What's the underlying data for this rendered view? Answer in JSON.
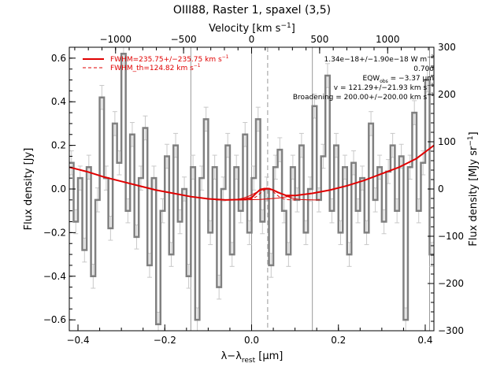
{
  "chart_data": {
    "type": "line",
    "title": "OIII88, Raster 1, spaxel (3,5)",
    "xlabel": "λ−λ",
    "xlabel_sub": "rest",
    "xlabel_unit": " [μm]",
    "ylabel": "Flux density [Jy]",
    "top_axis_label": "Velocity [km s",
    "top_axis_sup": "−1",
    "top_axis_close": "]",
    "right_axis_label": "Flux density [MJy sr",
    "right_axis_sup": "−1",
    "right_axis_close": "]",
    "xlim": [
      -0.42,
      0.42
    ],
    "ylim": [
      -0.65,
      0.65
    ],
    "top_xlim": [
      -1340,
      1340
    ],
    "right_ylim": [
      -300,
      300
    ],
    "x_ticks": [
      -0.4,
      -0.2,
      0.0,
      0.2,
      0.4
    ],
    "x_tick_labels": [
      "−0.4",
      "−0.2",
      "0.0",
      "0.2",
      "0.4"
    ],
    "y_ticks": [
      -0.6,
      -0.4,
      -0.2,
      0.0,
      0.2,
      0.4,
      0.6
    ],
    "y_tick_labels": [
      "−0.6",
      "−0.4",
      "−0.2",
      "0.0",
      "0.2",
      "0.4",
      "0.6"
    ],
    "top_ticks": [
      -1000,
      -500,
      0,
      500,
      1000
    ],
    "top_tick_labels": [
      "−1000",
      "−500",
      "0",
      "500",
      "1000"
    ],
    "right_ticks": [
      -300,
      -200,
      -100,
      0,
      100,
      200,
      300
    ],
    "right_tick_labels": [
      "−300",
      "−200",
      "−100",
      "0",
      "100",
      "200",
      "300"
    ],
    "vlines_solid": [
      -0.14,
      0.0,
      0.14,
      0.41
    ],
    "vline_dashed": 0.037,
    "legend": {
      "placement": "top-left",
      "entries": [
        {
          "label": "FWHM=235.75+/−235.75 km s",
          "sup": "−1",
          "style": "solid"
        },
        {
          "label": "FWHM_th=124.82 km s",
          "sup": "−1",
          "style": "dashed"
        }
      ]
    },
    "annotations": [
      "1.34e−18+/−1.90e−18 W m",
      "0.70σ",
      "EQW",
      " = −3.37 μm",
      "v = 121.29+/−21.93 km s",
      "Broadening = 200.00+/−200.00 km s"
    ],
    "annotation_sups": [
      "−2",
      "obs",
      "−1",
      "−1"
    ],
    "spectrum": {
      "color": "#808080",
      "x": [
        -0.415,
        -0.405,
        -0.395,
        -0.385,
        -0.375,
        -0.365,
        -0.355,
        -0.345,
        -0.335,
        -0.325,
        -0.315,
        -0.305,
        -0.295,
        -0.285,
        -0.275,
        -0.265,
        -0.255,
        -0.245,
        -0.235,
        -0.225,
        -0.215,
        -0.205,
        -0.195,
        -0.185,
        -0.175,
        -0.165,
        -0.155,
        -0.145,
        -0.135,
        -0.125,
        -0.115,
        -0.105,
        -0.095,
        -0.085,
        -0.075,
        -0.065,
        -0.055,
        -0.045,
        -0.035,
        -0.025,
        -0.015,
        -0.005,
        0.005,
        0.015,
        0.025,
        0.035,
        0.045,
        0.055,
        0.065,
        0.075,
        0.085,
        0.095,
        0.105,
        0.115,
        0.125,
        0.135,
        0.145,
        0.155,
        0.165,
        0.175,
        0.185,
        0.195,
        0.205,
        0.215,
        0.225,
        0.235,
        0.245,
        0.255,
        0.265,
        0.275,
        0.285,
        0.295,
        0.305,
        0.315,
        0.325,
        0.335,
        0.345,
        0.355,
        0.365,
        0.375,
        0.385,
        0.395,
        0.405,
        0.415
      ],
      "y": [
        0.12,
        -0.15,
        0.05,
        -0.28,
        0.1,
        -0.4,
        -0.05,
        0.42,
        0.05,
        -0.18,
        0.3,
        0.12,
        0.62,
        -0.1,
        0.25,
        -0.22,
        0.05,
        0.28,
        -0.35,
        0.05,
        -0.62,
        -0.1,
        0.15,
        -0.3,
        0.2,
        -0.15,
        0.0,
        -0.4,
        0.1,
        -0.6,
        0.05,
        0.32,
        -0.2,
        0.1,
        -0.45,
        0.0,
        0.2,
        -0.3,
        0.1,
        -0.1,
        0.25,
        -0.2,
        0.05,
        0.32,
        -0.15,
        0.0,
        -0.35,
        0.1,
        0.18,
        -0.1,
        -0.3,
        0.1,
        -0.05,
        0.2,
        -0.2,
        0.0,
        0.38,
        -0.05,
        0.15,
        0.52,
        -0.1,
        0.2,
        -0.2,
        0.1,
        -0.3,
        0.12,
        -0.1,
        0.05,
        -0.2,
        0.3,
        -0.05,
        0.1,
        -0.15,
        0.08,
        0.2,
        -0.1,
        0.15,
        -0.6,
        0.1,
        0.35,
        -0.1,
        0.12,
        0.5,
        -0.3
      ],
      "err": 0.055
    },
    "fit_model": {
      "color": "#e00000",
      "x": [
        -0.42,
        -0.38,
        -0.34,
        -0.3,
        -0.26,
        -0.22,
        -0.18,
        -0.14,
        -0.1,
        -0.06,
        -0.02,
        0.0,
        0.01,
        0.02,
        0.03,
        0.04,
        0.05,
        0.06,
        0.08,
        0.1,
        0.14,
        0.18,
        0.22,
        0.26,
        0.3,
        0.34,
        0.38,
        0.42
      ],
      "y": [
        0.1,
        0.08,
        0.055,
        0.035,
        0.015,
        -0.005,
        -0.02,
        -0.035,
        -0.045,
        -0.05,
        -0.048,
        -0.04,
        -0.02,
        -0.002,
        0.002,
        0.002,
        -0.005,
        -0.015,
        -0.03,
        -0.03,
        -0.02,
        -0.005,
        0.015,
        0.04,
        0.07,
        0.1,
        0.14,
        0.2
      ]
    },
    "fit_continuum": {
      "color": "#e00000",
      "x": [
        -0.42,
        -0.38,
        -0.34,
        -0.3,
        -0.26,
        -0.22,
        -0.18,
        -0.14,
        -0.1,
        -0.06,
        -0.02,
        0.02,
        0.06,
        0.1,
        0.14,
        0.18,
        0.22,
        0.26,
        0.3,
        0.34,
        0.38,
        0.42
      ],
      "y": [
        0.1,
        0.08,
        0.055,
        0.035,
        0.015,
        -0.005,
        -0.02,
        -0.035,
        -0.045,
        -0.05,
        -0.05,
        -0.048,
        -0.042,
        -0.03,
        -0.02,
        -0.005,
        0.015,
        0.04,
        0.07,
        0.1,
        0.14,
        0.2
      ]
    },
    "fit_line": {
      "color": "#e00000",
      "center": 0.037,
      "peak": 0.0,
      "base": -0.05,
      "sigma": 0.03,
      "sigma_th": 0.017
    }
  }
}
